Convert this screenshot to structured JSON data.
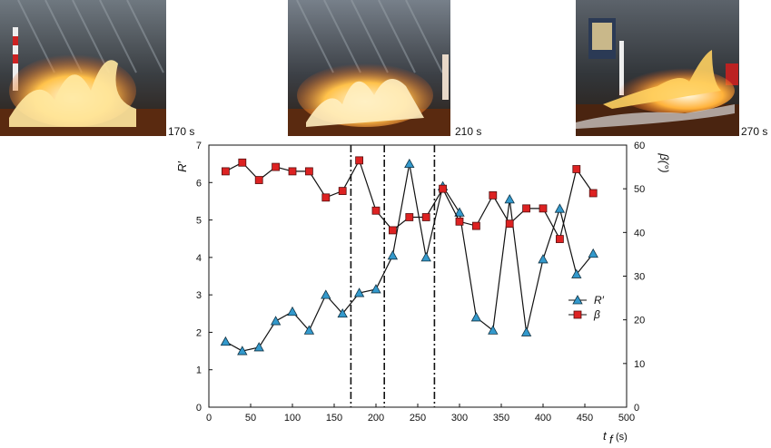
{
  "photos": [
    {
      "caption": "170 s"
    },
    {
      "caption": "210 s"
    },
    {
      "caption": "270 s"
    }
  ],
  "chart_data": {
    "type": "line",
    "x_label": "t",
    "x_label_sub": "f",
    "x_label_unit": "(s)",
    "y_left_label": "R′",
    "y_right_label": "β(°)",
    "xlim": [
      0,
      500
    ],
    "ylim_left": [
      0,
      7
    ],
    "ylim_right": [
      0,
      60
    ],
    "x_ticks": [
      "0",
      "50",
      "100",
      "150",
      "200",
      "250",
      "300",
      "350",
      "400",
      "450",
      "500"
    ],
    "y_left_ticks": [
      "0",
      "1",
      "2",
      "3",
      "4",
      "5",
      "6",
      "7"
    ],
    "y_right_ticks": [
      "0",
      "10",
      "20",
      "30",
      "40",
      "50",
      "60"
    ],
    "vertical_lines": [
      170,
      210,
      270
    ],
    "legend_position": "right",
    "series": [
      {
        "name": "R′",
        "axis": "left",
        "color": "#3399cc",
        "marker": "triangle",
        "x": [
          20,
          40,
          60,
          80,
          100,
          120,
          140,
          160,
          180,
          200,
          220,
          240,
          260,
          280,
          300,
          320,
          340,
          360,
          380,
          400,
          420,
          440,
          460
        ],
        "y": [
          1.75,
          1.5,
          1.6,
          2.3,
          2.55,
          2.05,
          3.0,
          2.5,
          3.05,
          3.15,
          4.05,
          6.5,
          4.0,
          5.9,
          5.2,
          2.4,
          2.05,
          5.55,
          2.0,
          3.95,
          5.3,
          3.55,
          4.1
        ]
      },
      {
        "name": "β",
        "axis": "right",
        "color": "#dd2222",
        "marker": "square",
        "x": [
          20,
          40,
          60,
          80,
          100,
          120,
          140,
          160,
          180,
          200,
          220,
          240,
          260,
          280,
          300,
          320,
          340,
          360,
          380,
          400,
          420,
          440,
          460
        ],
        "y": [
          54,
          56,
          52,
          55,
          54,
          54,
          48,
          49.5,
          56.5,
          45,
          40.5,
          43.5,
          43.5,
          50,
          42.5,
          41.5,
          48.5,
          42,
          45.5,
          45.5,
          38.5,
          54.5,
          49
        ]
      }
    ]
  }
}
